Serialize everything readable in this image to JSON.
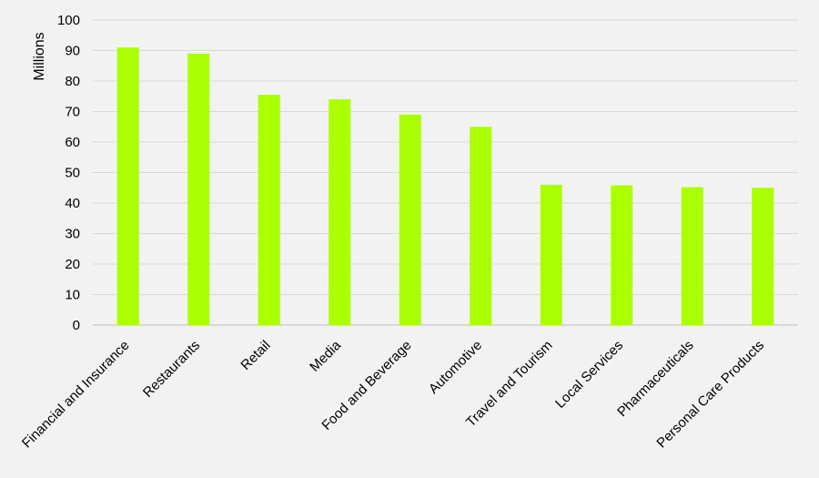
{
  "chart_data": {
    "type": "bar",
    "title": "",
    "xlabel": "",
    "ylabel": "Millions",
    "ylim": [
      0,
      100
    ],
    "yticks": [
      0,
      10,
      20,
      30,
      40,
      50,
      60,
      70,
      80,
      90,
      100
    ],
    "grid": true,
    "legend": "none",
    "categories": [
      "Financial and Insurance",
      "Restaurants",
      "Retail",
      "Media",
      "Food and Beverage",
      "Automotive",
      "Travel and Tourism",
      "Local Services",
      "Pharmaceuticals",
      "Personal Care Products"
    ],
    "values": [
      91,
      89,
      75.5,
      74,
      69,
      65,
      46,
      45.8,
      45.2,
      45
    ],
    "colors": {
      "bar": "#aaff00",
      "gridline": "#d9d9d9",
      "background": "#f2f2f2"
    }
  }
}
